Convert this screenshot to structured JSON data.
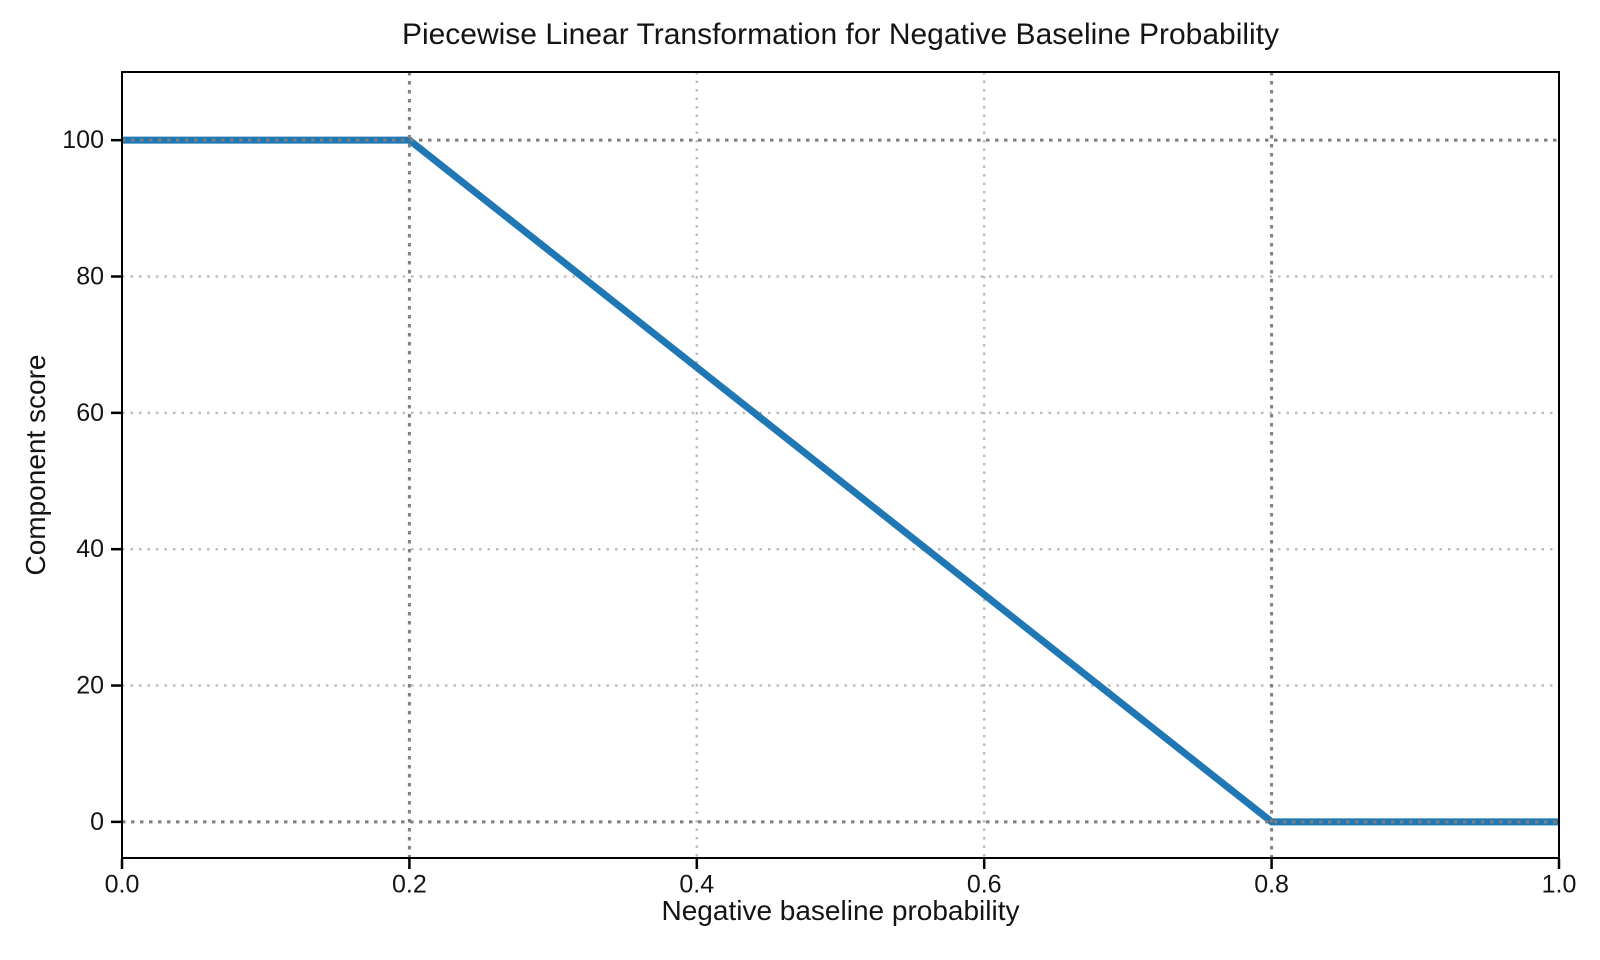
{
  "chart_data": {
    "type": "line",
    "title": "Piecewise Linear Transformation for Negative Baseline Probability",
    "xlabel": "Negative baseline probability",
    "ylabel": "Component score",
    "xlim": [
      0.0,
      1.0
    ],
    "ylim": [
      -5.3,
      110.0
    ],
    "xticks": [
      0.0,
      0.2,
      0.4,
      0.6,
      0.8,
      1.0
    ],
    "xtick_labels": [
      "0.0",
      "0.2",
      "0.4",
      "0.6",
      "0.8",
      "1.0"
    ],
    "yticks": [
      0,
      20,
      40,
      60,
      80,
      100
    ],
    "ytick_labels": [
      "0",
      "20",
      "40",
      "60",
      "80",
      "100"
    ],
    "series": [
      {
        "name": "Component score",
        "x": [
          0.0,
          0.2,
          0.8,
          1.0
        ],
        "y": [
          100,
          100,
          0,
          0
        ],
        "color": "#1f77b4",
        "linewidth": 7
      }
    ],
    "reference_lines": {
      "x_values": [
        0.2,
        0.8
      ],
      "y_values": [
        0,
        100
      ],
      "color": "#7f7f7f",
      "style": "dotted",
      "linewidth": 3
    },
    "grid": {
      "x_values": [
        0.4,
        0.6
      ],
      "y_values": [
        20,
        40,
        60,
        80
      ],
      "color": "#bdbdbd",
      "style": "dotted",
      "linewidth": 2.5,
      "visible": true
    },
    "legend": {
      "visible": false
    },
    "background_color": "#ffffff",
    "axis_color": "#000000",
    "text_color": "#141414"
  }
}
